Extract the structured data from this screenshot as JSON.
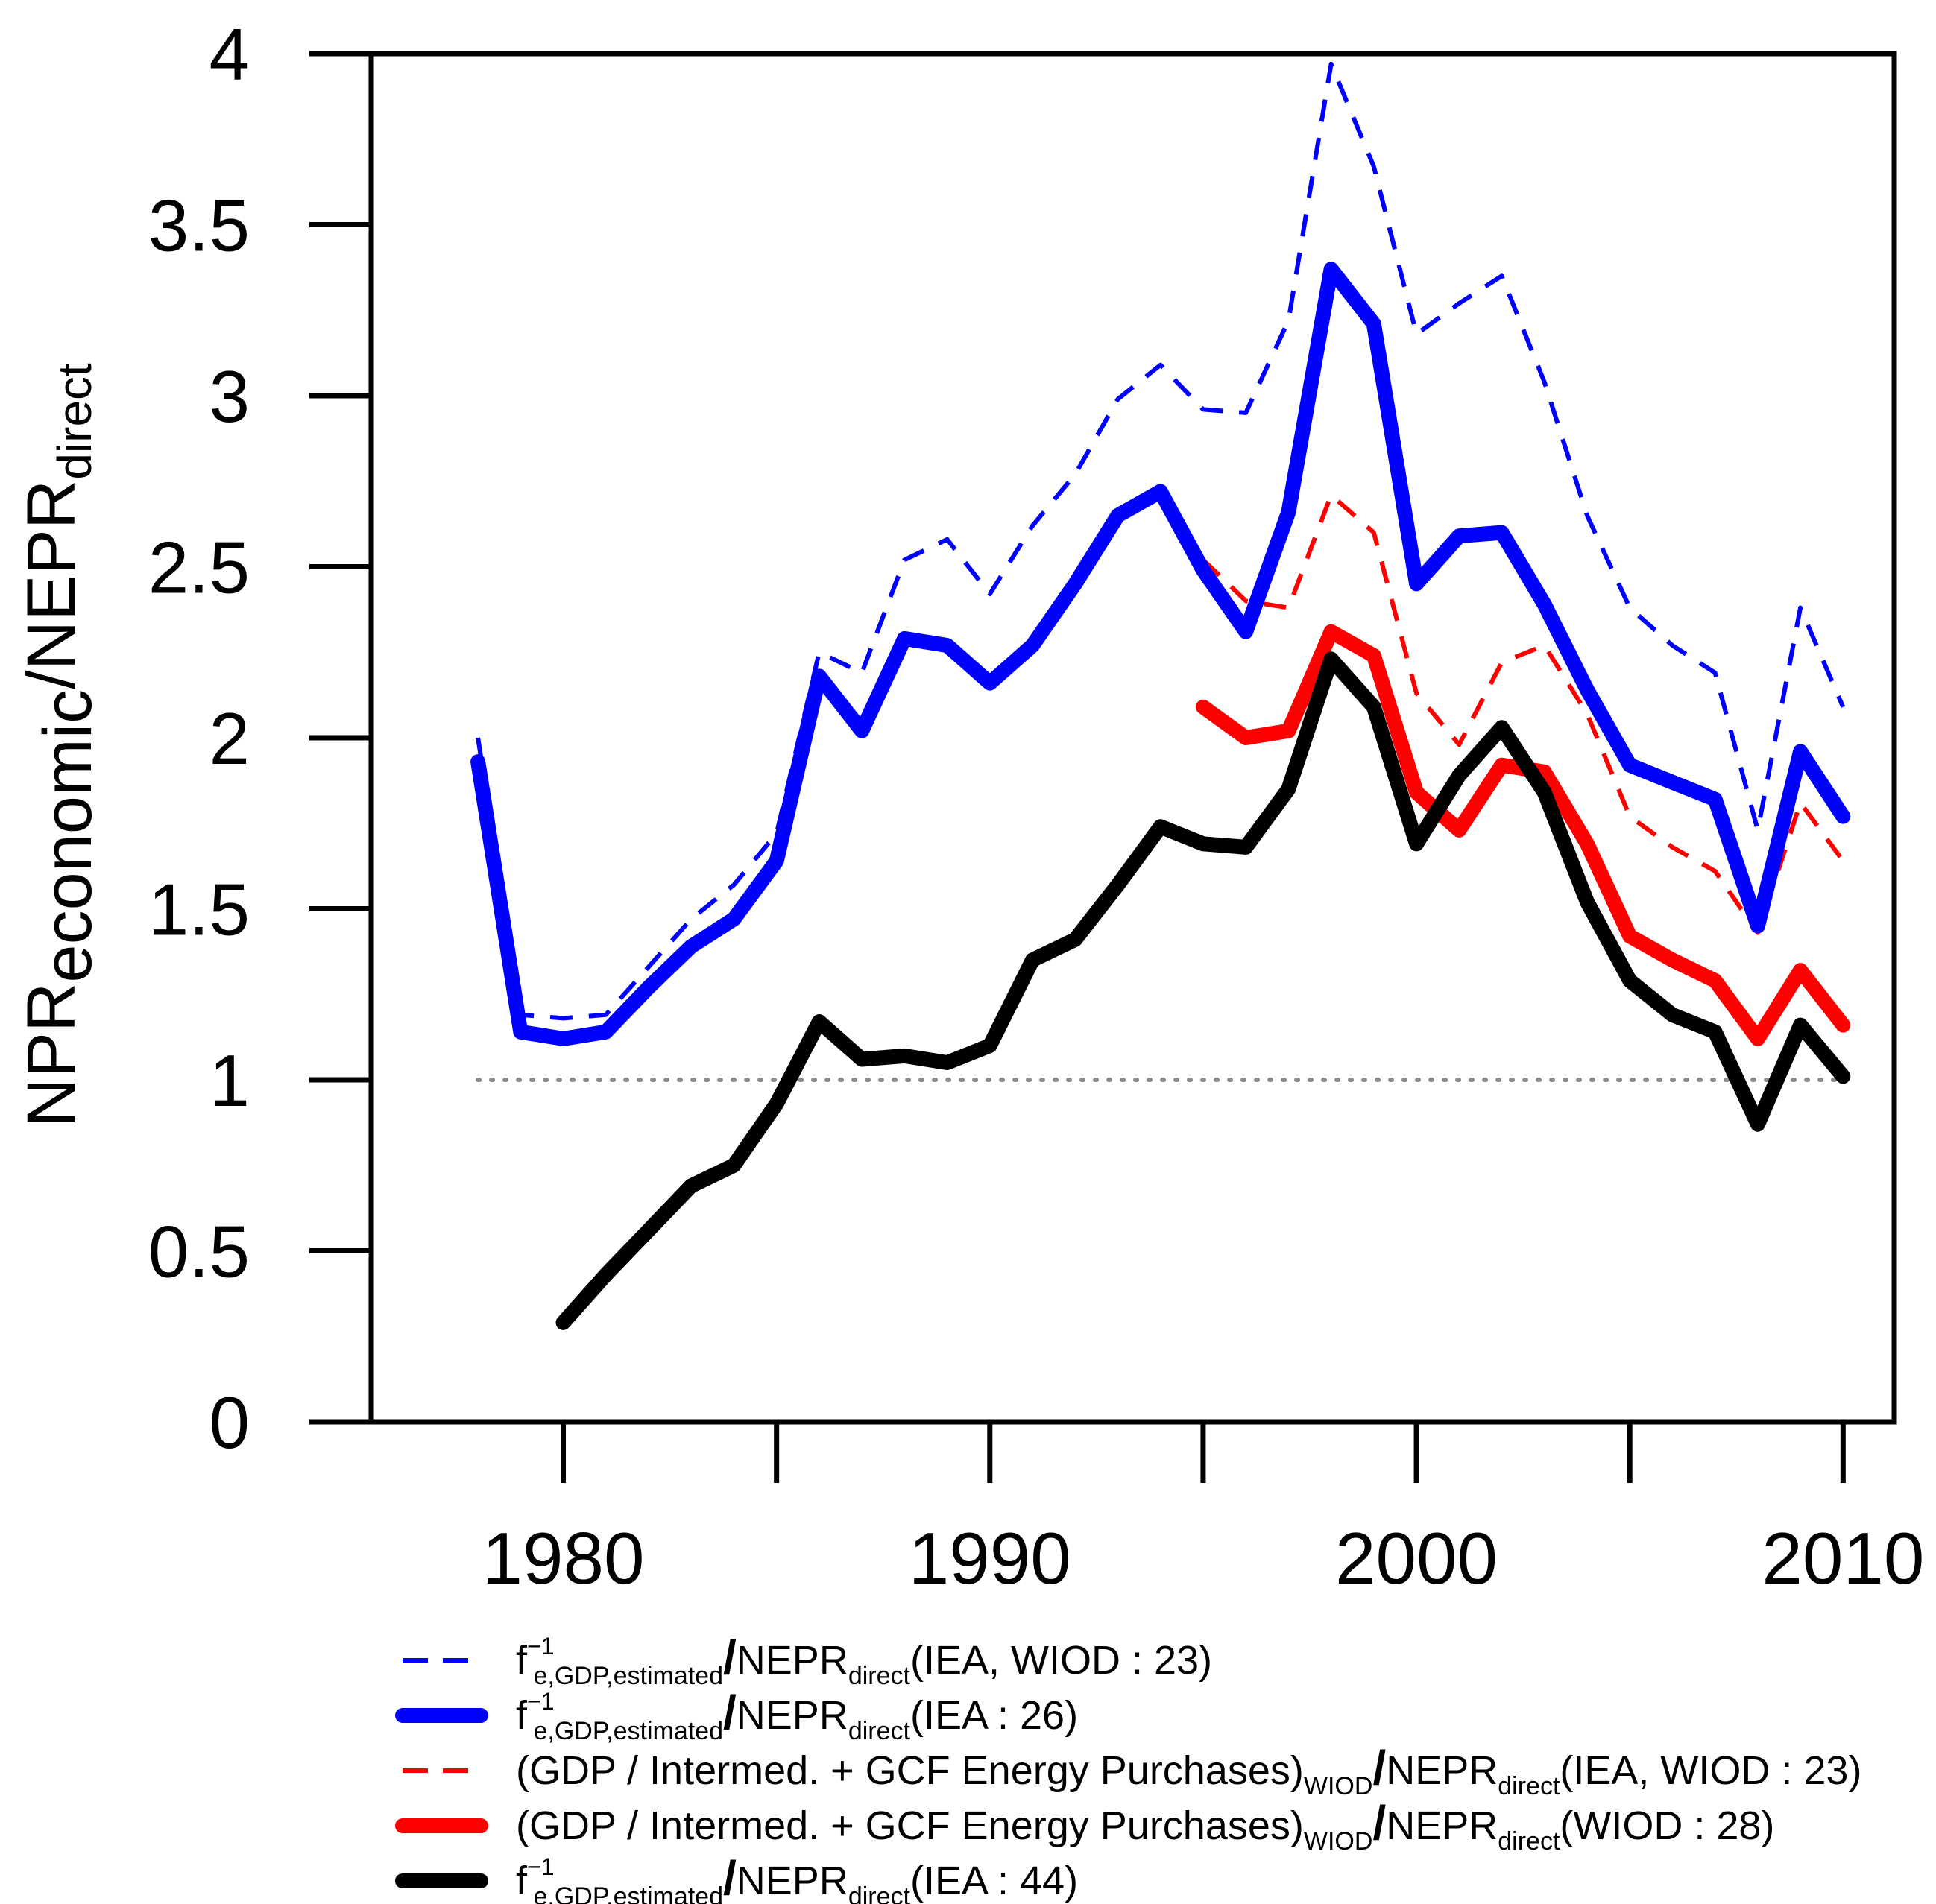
{
  "chart_data": {
    "type": "line",
    "title": "",
    "xlabel": "",
    "ylabel": "NPR_economic / NEPR_direct",
    "ylabel_parts": {
      "main1": "NPR",
      "sub1": "economic",
      "slash": "/",
      "main2": "NEPR",
      "sub2": "direct"
    },
    "xlim": [
      1975.5,
      2011.2
    ],
    "ylim": [
      0,
      4
    ],
    "x_ticks": [
      1980,
      1990,
      2000,
      2010
    ],
    "y_ticks": [
      0,
      0.5,
      1,
      1.5,
      2,
      2.5,
      3,
      3.5,
      4
    ],
    "y_tick_labels": [
      "0",
      "0.5",
      "1",
      "1.5",
      "2",
      "2.5",
      "3",
      "3.5",
      "4"
    ],
    "x_tick_labels": [
      "1980",
      "1990",
      "2000",
      "2010"
    ],
    "reference_line": {
      "y": 1,
      "color": "#8c8c8c",
      "style": "dotted"
    },
    "legend_position": "bottom",
    "series": [
      {
        "name": "f_e,GDP,estimated^-1 / NEPR_direct (IEA, WIOD : 23)",
        "color": "#0000ff",
        "style": "dashed",
        "width": "thin",
        "x": [
          1978,
          1979,
          1980,
          1981,
          1982,
          1983,
          1984,
          1985,
          1986,
          1987,
          1988,
          1989,
          1990,
          1991,
          1992,
          1993,
          1994,
          1995,
          1996,
          1997,
          1998,
          1999,
          2000,
          2001,
          2002,
          2003,
          2004,
          2005,
          2006,
          2007,
          2008,
          2009,
          2010
        ],
        "values": [
          2.0,
          1.19,
          1.18,
          1.19,
          1.33,
          1.47,
          1.57,
          1.72,
          2.25,
          2.19,
          2.52,
          2.58,
          2.42,
          2.62,
          2.77,
          2.99,
          3.09,
          2.96,
          2.95,
          3.22,
          3.97,
          3.67,
          3.18,
          3.27,
          3.35,
          3.04,
          2.65,
          2.38,
          2.27,
          2.19,
          1.73,
          2.38,
          2.09
        ]
      },
      {
        "name": "f_e,GDP,estimated^-1 / NEPR_direct (IEA : 26)",
        "color": "#0000ff",
        "style": "solid",
        "width": "thick",
        "x": [
          1978,
          1979,
          1980,
          1981,
          1982,
          1983,
          1984,
          1985,
          1986,
          1987,
          1988,
          1989,
          1990,
          1991,
          1992,
          1993,
          1994,
          1995,
          1996,
          1997,
          1998,
          1999,
          2000,
          2001,
          2002,
          2003,
          2004,
          2005,
          2006,
          2007,
          2008,
          2009,
          2010
        ],
        "values": [
          1.93,
          1.14,
          1.12,
          1.14,
          1.27,
          1.39,
          1.47,
          1.64,
          2.18,
          2.02,
          2.29,
          2.27,
          2.16,
          2.27,
          2.45,
          2.65,
          2.72,
          2.49,
          2.31,
          2.66,
          3.37,
          3.21,
          2.45,
          2.59,
          2.6,
          2.39,
          2.14,
          1.92,
          1.87,
          1.82,
          1.45,
          1.96,
          1.77
        ]
      },
      {
        "name": "(GDP / Intermed. + GCF Energy Purchases)_WIOD / NEPR_direct (IEA, WIOD : 23)",
        "color": "#ff0000",
        "style": "dashed",
        "width": "thin",
        "x": [
          1995,
          1996,
          1997,
          1998,
          1999,
          2000,
          2001,
          2002,
          2003,
          2004,
          2005,
          2006,
          2007,
          2008,
          2009,
          2010
        ],
        "values": [
          2.52,
          2.4,
          2.38,
          2.71,
          2.6,
          2.13,
          1.98,
          2.22,
          2.27,
          2.07,
          1.77,
          1.68,
          1.61,
          1.43,
          1.81,
          1.64
        ]
      },
      {
        "name": "(GDP / Intermed. + GCF Energy Purchases)_WIOD / NEPR_direct (WIOD : 28)",
        "color": "#ff0000",
        "style": "solid",
        "width": "thick",
        "x": [
          1995,
          1996,
          1997,
          1998,
          1999,
          2000,
          2001,
          2002,
          2003,
          2004,
          2005,
          2006,
          2007,
          2008,
          2009,
          2010
        ],
        "values": [
          2.09,
          2.0,
          2.02,
          2.31,
          2.24,
          1.84,
          1.73,
          1.92,
          1.9,
          1.69,
          1.42,
          1.35,
          1.29,
          1.12,
          1.32,
          1.16
        ]
      },
      {
        "name": "f_e,GDP,estimated^-1 / NEPR_direct (IEA : 44)",
        "color": "#000000",
        "style": "solid",
        "width": "thick",
        "x": [
          1980,
          1981,
          1982,
          1983,
          1984,
          1985,
          1986,
          1987,
          1988,
          1989,
          1990,
          1991,
          1992,
          1993,
          1994,
          1995,
          1996,
          1997,
          1998,
          1999,
          2000,
          2001,
          2002,
          2003,
          2004,
          2005,
          2006,
          2007,
          2008,
          2009,
          2010
        ],
        "values": [
          0.29,
          0.43,
          0.56,
          0.69,
          0.75,
          0.93,
          1.17,
          1.06,
          1.07,
          1.05,
          1.1,
          1.35,
          1.41,
          1.57,
          1.74,
          1.69,
          1.68,
          1.85,
          2.23,
          2.09,
          1.69,
          1.89,
          2.03,
          1.84,
          1.52,
          1.29,
          1.19,
          1.14,
          0.87,
          1.16,
          1.01
        ]
      }
    ],
    "legend": [
      {
        "series": 0,
        "lead": "f",
        "sup": "−1",
        "sub": "e,GDP,estimated",
        "slash": "/",
        "main2": "NEPR",
        "sub2": "direct",
        "tail": "(IEA, WIOD : 23)"
      },
      {
        "series": 1,
        "lead": "f",
        "sup": "−1",
        "sub": "e,GDP,estimated",
        "slash": "/",
        "main2": "NEPR",
        "sub2": "direct",
        "tail": "(IEA : 26)"
      },
      {
        "series": 2,
        "lead": "(GDP / Intermed. + GCF Energy Purchases)",
        "sup": "",
        "sub": "WIOD",
        "slash": "/",
        "main2": "NEPR",
        "sub2": "direct",
        "tail": "(IEA, WIOD : 23)"
      },
      {
        "series": 3,
        "lead": "(GDP / Intermed. + GCF Energy Purchases)",
        "sup": "",
        "sub": "WIOD",
        "slash": "/",
        "main2": "NEPR",
        "sub2": "direct",
        "tail": "(WIOD : 28)"
      },
      {
        "series": 4,
        "lead": "f",
        "sup": "−1",
        "sub": "e,GDP,estimated",
        "slash": "/",
        "main2": "NEPR",
        "sub2": "direct",
        "tail": "(IEA : 44)"
      }
    ]
  }
}
